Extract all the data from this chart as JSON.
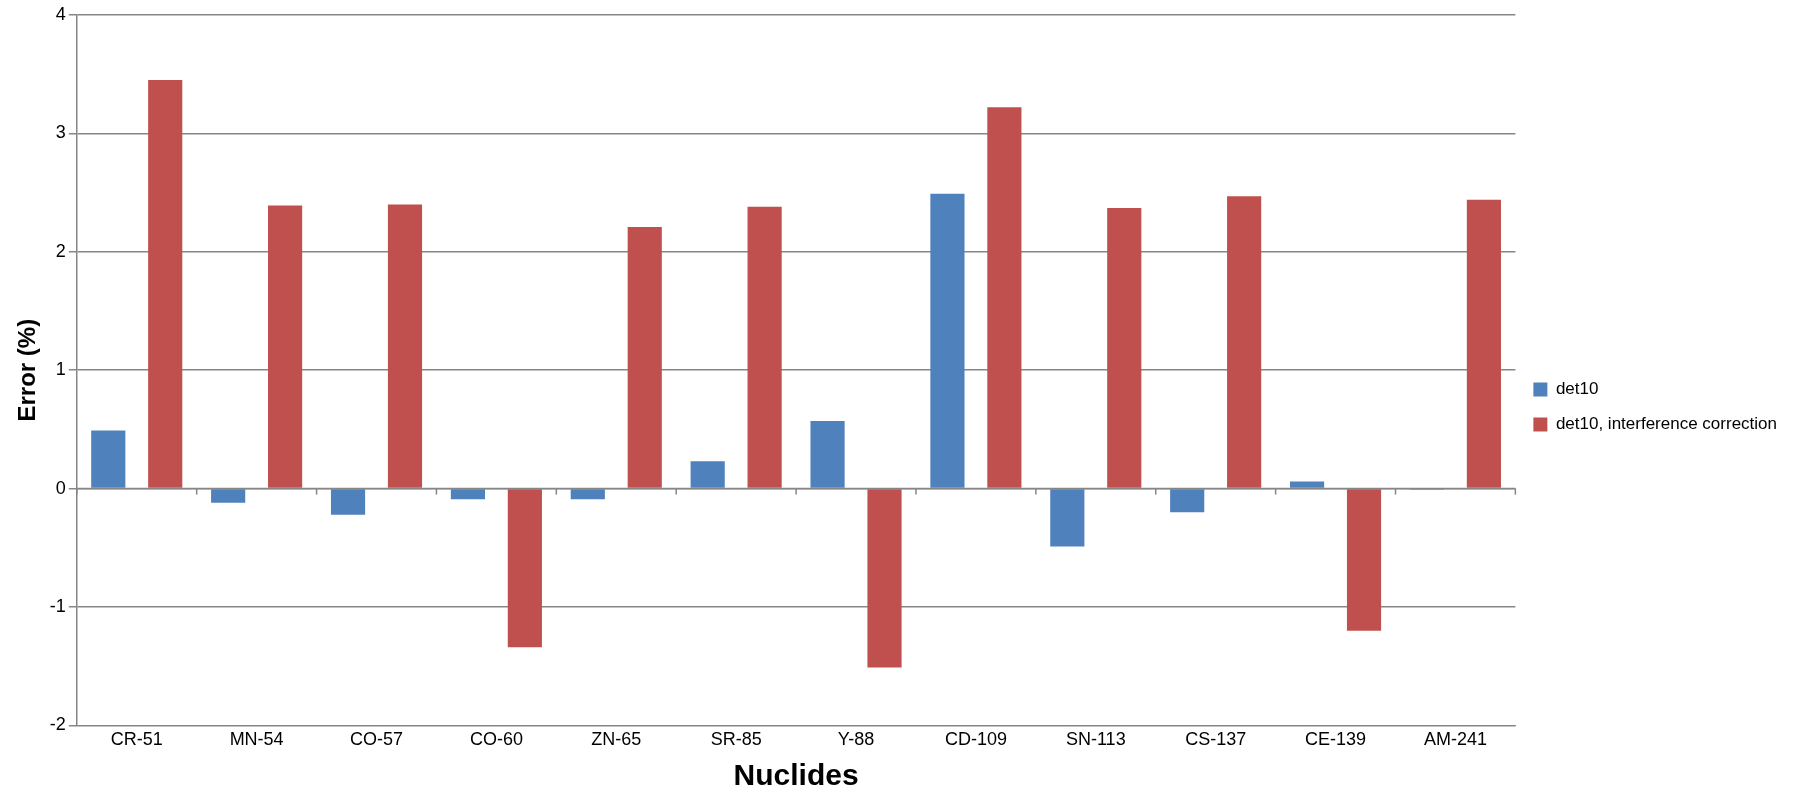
{
  "chart_data": {
    "type": "bar",
    "xlabel": "Nuclides",
    "ylabel": "Error (%)",
    "categories": [
      "CR-51",
      "MN-54",
      "CO-57",
      "CO-60",
      "ZN-65",
      "SR-85",
      "Y-88",
      "CD-109",
      "SN-113",
      "CS-137",
      "CE-139",
      "AM-241"
    ],
    "series": [
      {
        "name": "det10",
        "color": "#4f81bd",
        "values": [
          0.49,
          -0.12,
          -0.22,
          -0.09,
          -0.09,
          0.23,
          0.57,
          2.49,
          -0.49,
          -0.2,
          0.06,
          -0.01
        ]
      },
      {
        "name": "det10, interference correction",
        "color": "#c0504d",
        "values": [
          3.45,
          2.39,
          2.4,
          -1.34,
          2.21,
          2.38,
          -1.51,
          3.22,
          2.37,
          2.47,
          -1.2,
          2.44
        ]
      }
    ],
    "ylim": [
      -2,
      4
    ],
    "yticks": [
      -2,
      -1,
      0,
      1,
      2,
      3,
      4
    ],
    "grid": "y",
    "legend": "right"
  }
}
